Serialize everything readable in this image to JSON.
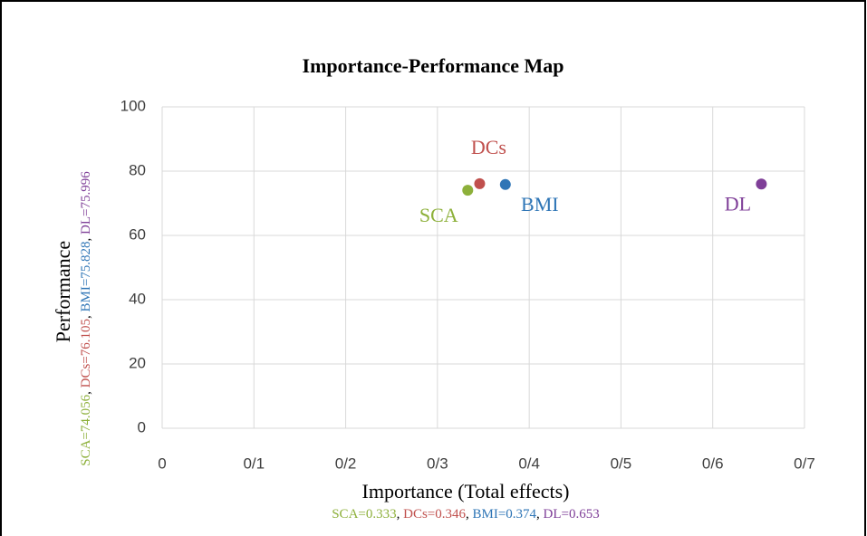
{
  "chart_data": {
    "type": "scatter",
    "title": "Importance-Performance Map",
    "x_label": "Importance (Total effects)",
    "y_label": "Performance",
    "x_annotation": [
      "SCA=0.333",
      "DCs=0.346",
      "BMI=0.374",
      "DL=0.653"
    ],
    "y_annotation": [
      "SCA=74.056",
      "DCs=76.105",
      "BMI=75.828",
      "DL=75.996"
    ],
    "annotation_separator": ", ",
    "series": [
      {
        "name": "SCA",
        "color": "#8db03a",
        "x": [
          0.333
        ],
        "values": [
          74.056
        ]
      },
      {
        "name": "DCs",
        "color": "#c0504d",
        "x": [
          0.346
        ],
        "values": [
          76.105
        ]
      },
      {
        "name": "BMI",
        "color": "#2e75b6",
        "x": [
          0.374
        ],
        "values": [
          75.828
        ]
      },
      {
        "name": "DL",
        "color": "#7f3f98",
        "x": [
          0.653
        ],
        "values": [
          75.996
        ]
      }
    ],
    "xlim": [
      0,
      0.7
    ],
    "ylim": [
      0,
      100
    ],
    "xticks": [
      0,
      {
        "value": 0.1,
        "label": "0/1"
      },
      {
        "value": 0.2,
        "label": "0/2"
      },
      {
        "value": 0.3,
        "label": "0/3"
      },
      {
        "value": 0.4,
        "label": "0/4"
      },
      {
        "value": 0.5,
        "label": "0/5"
      },
      {
        "value": 0.6,
        "label": "0/6"
      },
      {
        "value": 0.7,
        "label": "0/7"
      }
    ],
    "yticks": [
      0,
      20,
      40,
      60,
      80,
      100
    ],
    "grid": true
  }
}
